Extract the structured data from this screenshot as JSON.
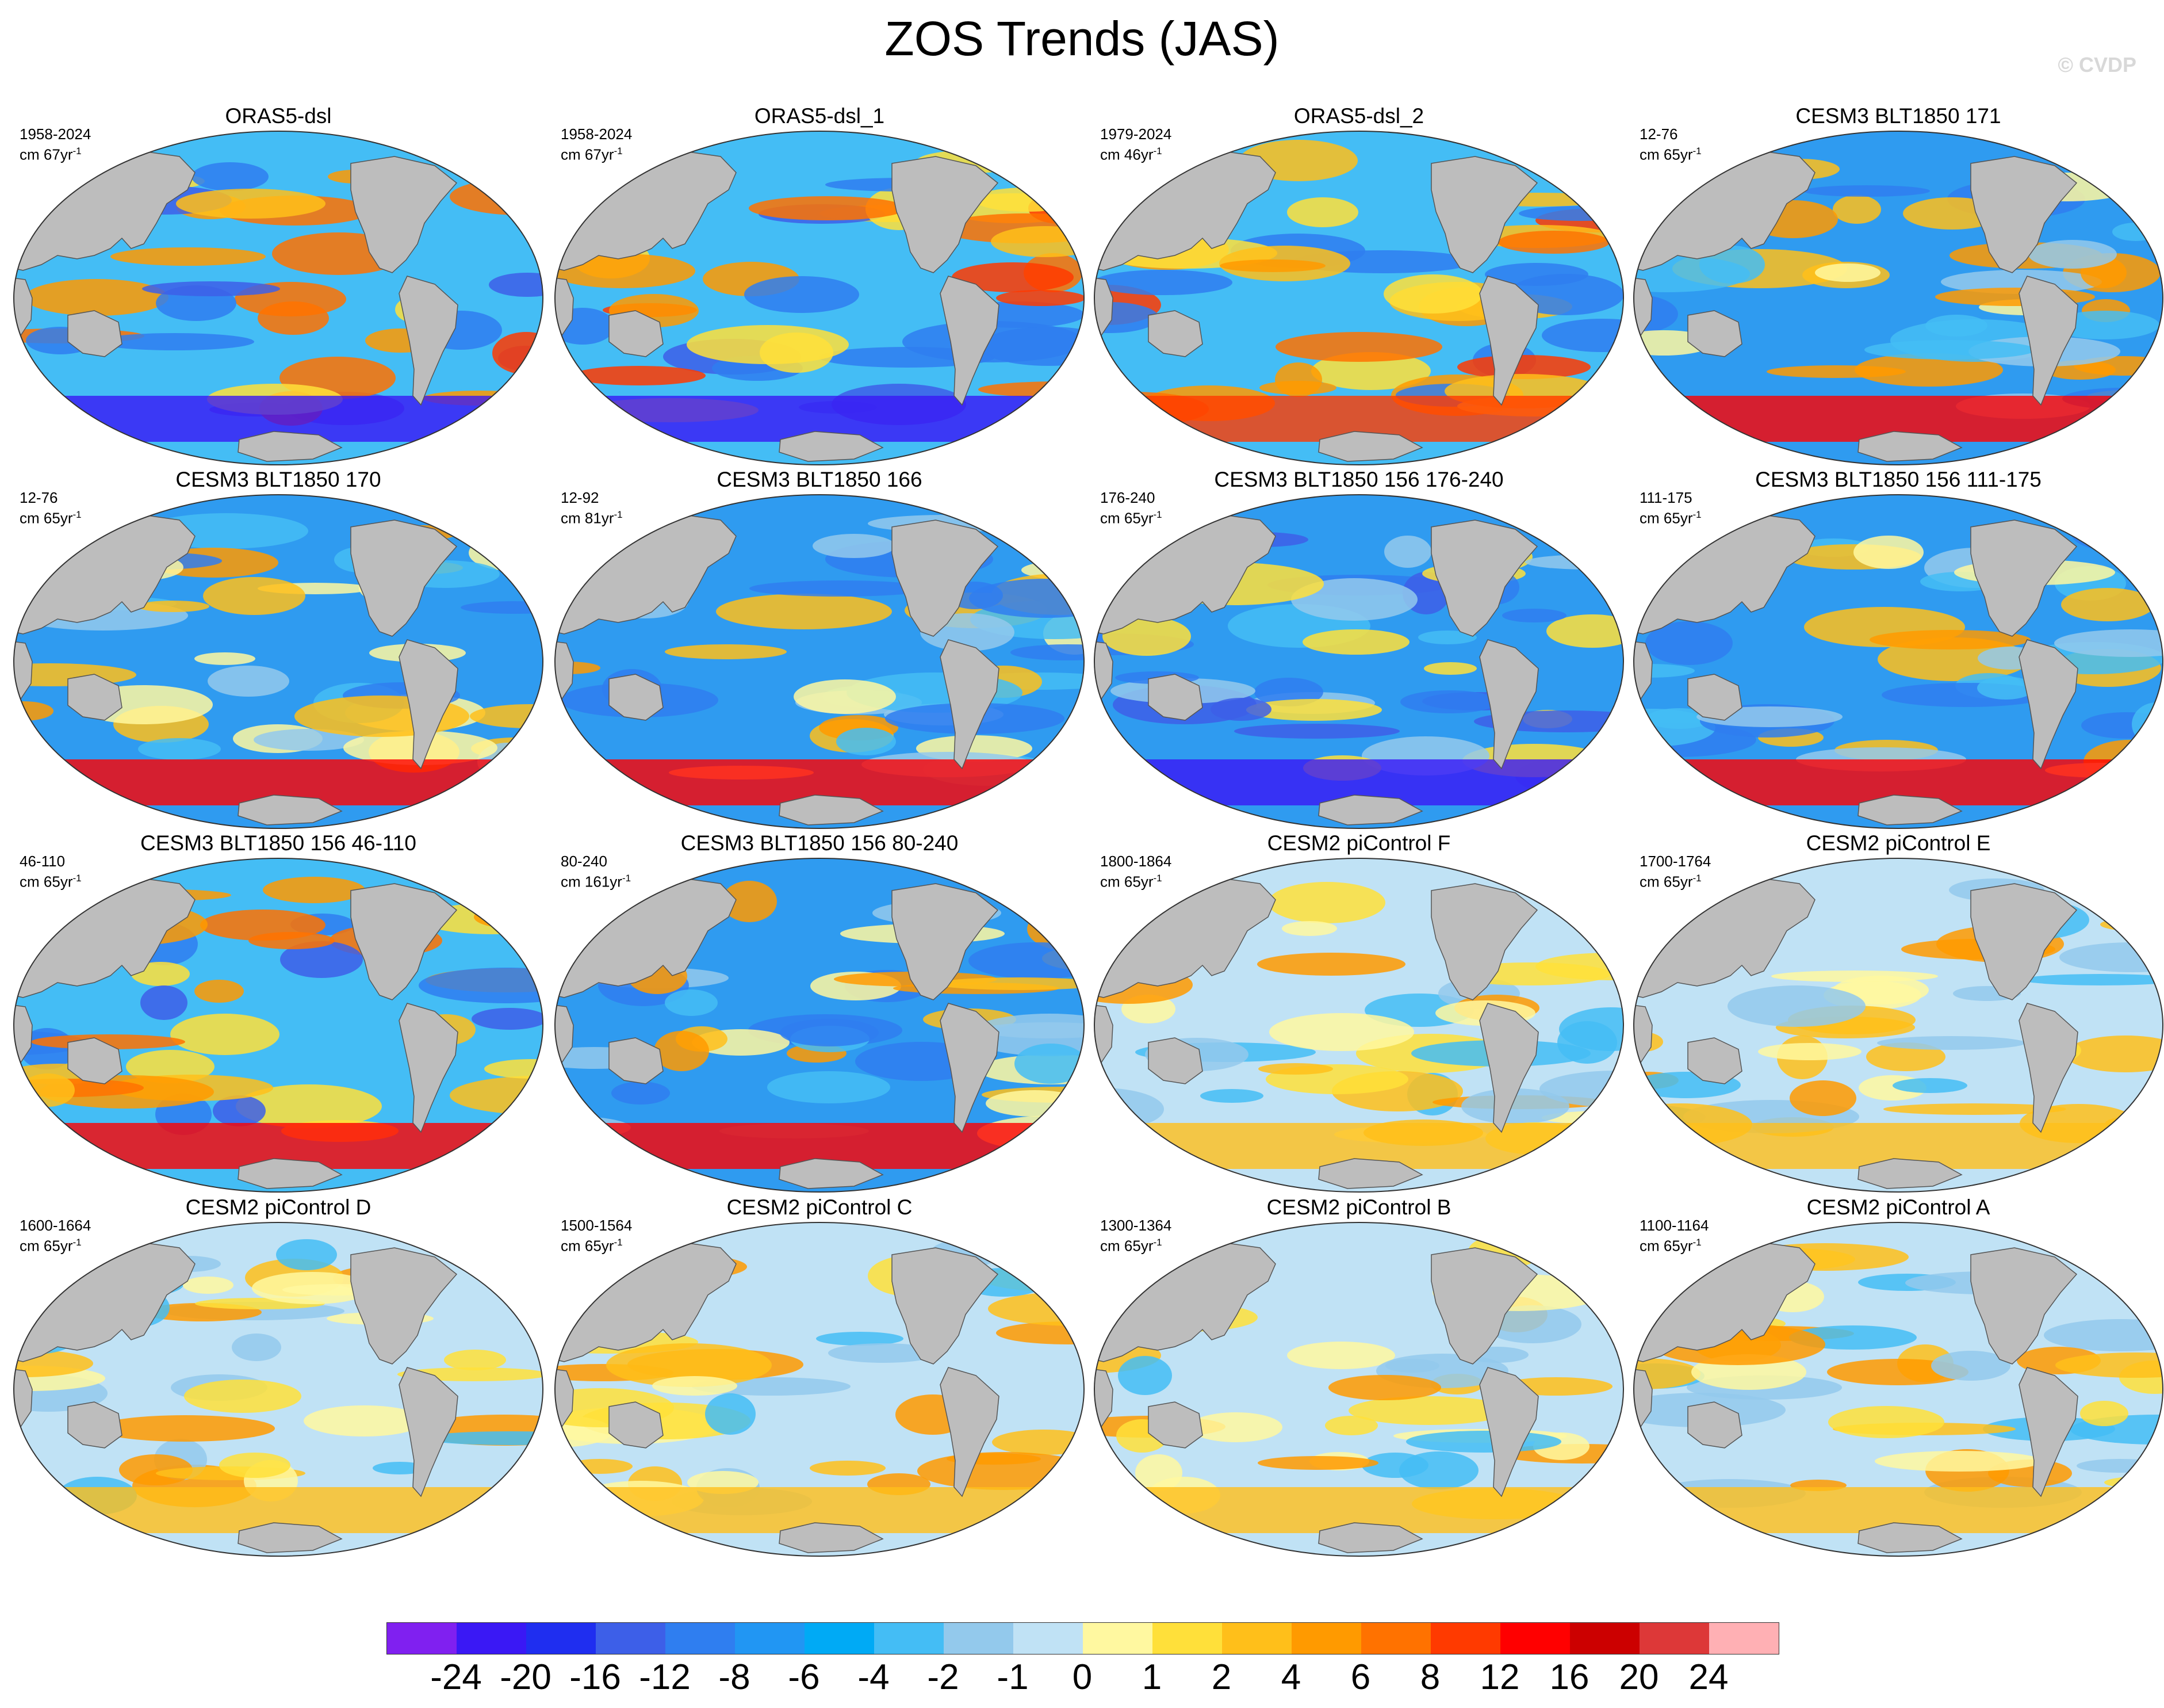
{
  "title": "ZOS Trends (JAS)",
  "watermark": "© CVDP",
  "chart_data": {
    "type": "heatmap",
    "title": "ZOS Trends (JAS)",
    "projection": "global map",
    "land_color": "#bdbdbd",
    "panels": [
      {
        "title": "ORAS5-dsl",
        "years": "1958-2024",
        "scale_unit": "cm",
        "scale_value": "67",
        "scale_period": "yr",
        "pattern": "obs"
      },
      {
        "title": "ORAS5-dsl_1",
        "years": "1958-2024",
        "scale_unit": "cm",
        "scale_value": "67",
        "scale_period": "yr",
        "pattern": "obs"
      },
      {
        "title": "ORAS5-dsl_2",
        "years": "1979-2024",
        "scale_unit": "cm",
        "scale_value": "46",
        "scale_period": "yr",
        "pattern": "obs2"
      },
      {
        "title": "CESM3 BLT1850 171",
        "years": "12-76",
        "scale_unit": "cm",
        "scale_value": "65",
        "scale_period": "yr",
        "pattern": "blt"
      },
      {
        "title": "CESM3 BLT1850 170",
        "years": "12-76",
        "scale_unit": "cm",
        "scale_value": "65",
        "scale_period": "yr",
        "pattern": "blt"
      },
      {
        "title": "CESM3 BLT1850 166",
        "years": "12-92",
        "scale_unit": "cm",
        "scale_value": "81",
        "scale_period": "yr",
        "pattern": "blt"
      },
      {
        "title": "CESM3 BLT1850 156 176-240",
        "years": "176-240",
        "scale_unit": "cm",
        "scale_value": "65",
        "scale_period": "yr",
        "pattern": "blt_neg"
      },
      {
        "title": "CESM3 BLT1850 156 111-175",
        "years": "111-175",
        "scale_unit": "cm",
        "scale_value": "65",
        "scale_period": "yr",
        "pattern": "blt"
      },
      {
        "title": "CESM3 BLT1850 156 46-110",
        "years": "46-110",
        "scale_unit": "cm",
        "scale_value": "65",
        "scale_period": "yr",
        "pattern": "blt_mix"
      },
      {
        "title": "CESM3 BLT1850 156 80-240",
        "years": "80-240",
        "scale_unit": "cm",
        "scale_value": "161",
        "scale_period": "yr",
        "pattern": "blt"
      },
      {
        "title": "CESM2 piControl F",
        "years": "1800-1864",
        "scale_unit": "cm",
        "scale_value": "65",
        "scale_period": "yr",
        "pattern": "pic"
      },
      {
        "title": "CESM2 piControl E",
        "years": "1700-1764",
        "scale_unit": "cm",
        "scale_value": "65",
        "scale_period": "yr",
        "pattern": "pic"
      },
      {
        "title": "CESM2 piControl D",
        "years": "1600-1664",
        "scale_unit": "cm",
        "scale_value": "65",
        "scale_period": "yr",
        "pattern": "pic"
      },
      {
        "title": "CESM2 piControl C",
        "years": "1500-1564",
        "scale_unit": "cm",
        "scale_value": "65",
        "scale_period": "yr",
        "pattern": "pic"
      },
      {
        "title": "CESM2 piControl B",
        "years": "1300-1364",
        "scale_unit": "cm",
        "scale_value": "65",
        "scale_period": "yr",
        "pattern": "pic"
      },
      {
        "title": "CESM2 piControl A",
        "years": "1100-1164",
        "scale_unit": "cm",
        "scale_value": "65",
        "scale_period": "yr",
        "pattern": "pic"
      }
    ],
    "colorbar": {
      "labels": [
        "-24",
        "-20",
        "-16",
        "-12",
        "-8",
        "-6",
        "-4",
        "-2",
        "-1",
        "0",
        "1",
        "2",
        "4",
        "6",
        "8",
        "12",
        "16",
        "20",
        "24"
      ],
      "colors": [
        "#8020f0",
        "#3a18f5",
        "#1f2ef0",
        "#3d5fe8",
        "#2f7ef0",
        "#2196f3",
        "#00aaf5",
        "#44bdf5",
        "#93c9ec",
        "#c0e2f5",
        "#fff8a0",
        "#ffe03a",
        "#ffbf1a",
        "#ff9a00",
        "#ff7200",
        "#ff3a00",
        "#ff0000",
        "#cc0000",
        "#dd3838",
        "#ffb0b4"
      ]
    }
  }
}
